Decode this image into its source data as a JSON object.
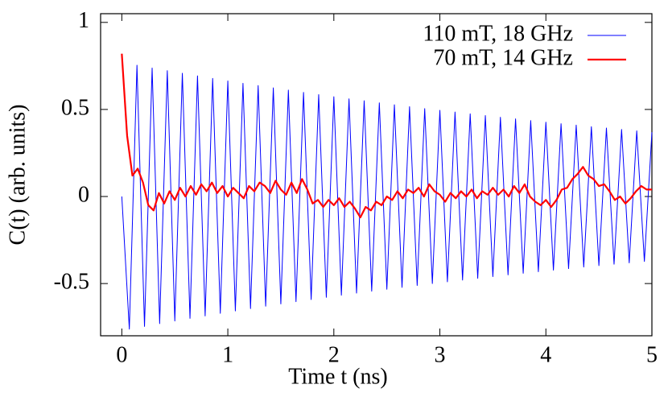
{
  "chart_data": {
    "type": "line",
    "xlabel": "Time t (ns)",
    "ylabel": "C(t) (arb. units)",
    "xlim": [
      -0.2,
      5
    ],
    "ylim": [
      -0.8,
      1.05
    ],
    "xticks": [
      0,
      1,
      2,
      3,
      4,
      5
    ],
    "yticks": [
      -0.5,
      0,
      0.5,
      1
    ],
    "grid": false,
    "legend": "upper right",
    "series": [
      {
        "name": "110 mT, 18 GHz",
        "color": "#0000ff",
        "width": 1,
        "x": [
          0,
          0.071,
          0.143,
          0.214,
          0.286,
          0.357,
          0.429,
          0.5,
          0.571,
          0.643,
          0.714,
          0.786,
          0.857,
          0.929,
          1.0,
          1.071,
          1.143,
          1.214,
          1.286,
          1.357,
          1.429,
          1.5,
          1.571,
          1.643,
          1.714,
          1.786,
          1.857,
          1.929,
          2.0,
          2.071,
          2.143,
          2.214,
          2.286,
          2.357,
          2.429,
          2.5,
          2.571,
          2.643,
          2.714,
          2.786,
          2.857,
          2.929,
          3.0,
          3.071,
          3.143,
          3.214,
          3.286,
          3.357,
          3.429,
          3.5,
          3.571,
          3.643,
          3.714,
          3.786,
          3.857,
          3.929,
          4.0,
          4.071,
          4.143,
          4.214,
          4.286,
          4.357,
          4.429,
          4.5,
          4.571,
          4.643,
          4.714,
          4.786,
          4.857,
          4.929,
          5.0
        ],
        "values": [
          0,
          -0.762,
          0.754,
          -0.746,
          0.738,
          -0.73,
          0.723,
          -0.715,
          0.708,
          -0.7,
          0.693,
          -0.686,
          0.678,
          -0.671,
          0.664,
          -0.657,
          0.65,
          -0.644,
          0.637,
          -0.63,
          0.624,
          -0.617,
          0.611,
          -0.604,
          0.598,
          -0.592,
          0.585,
          -0.579,
          0.573,
          -0.567,
          0.561,
          -0.555,
          0.55,
          -0.544,
          0.538,
          -0.533,
          0.527,
          -0.522,
          0.516,
          -0.511,
          0.505,
          -0.5,
          0.495,
          -0.49,
          0.485,
          -0.48,
          0.475,
          -0.47,
          0.465,
          -0.46,
          0.455,
          -0.45,
          0.446,
          -0.441,
          0.436,
          -0.432,
          0.427,
          -0.423,
          0.418,
          -0.414,
          0.41,
          -0.405,
          0.401,
          -0.397,
          0.393,
          -0.389,
          0.385,
          -0.381,
          0.377,
          -0.373,
          0.369
        ]
      },
      {
        "name": "70 mT, 14 GHz",
        "color": "#ff0000",
        "width": 2.2,
        "x": [
          0,
          0.05,
          0.1,
          0.15,
          0.2,
          0.25,
          0.3,
          0.35,
          0.4,
          0.45,
          0.5,
          0.55,
          0.6,
          0.65,
          0.7,
          0.75,
          0.8,
          0.85,
          0.9,
          0.95,
          1.0,
          1.05,
          1.1,
          1.15,
          1.2,
          1.25,
          1.3,
          1.35,
          1.4,
          1.45,
          1.5,
          1.55,
          1.6,
          1.65,
          1.7,
          1.75,
          1.8,
          1.85,
          1.9,
          1.95,
          2.0,
          2.05,
          2.1,
          2.15,
          2.2,
          2.25,
          2.3,
          2.35,
          2.4,
          2.45,
          2.5,
          2.55,
          2.6,
          2.65,
          2.7,
          2.75,
          2.8,
          2.85,
          2.9,
          2.95,
          3.0,
          3.05,
          3.1,
          3.15,
          3.2,
          3.25,
          3.3,
          3.35,
          3.4,
          3.45,
          3.5,
          3.55,
          3.6,
          3.65,
          3.7,
          3.75,
          3.8,
          3.85,
          3.9,
          3.95,
          4.0,
          4.05,
          4.1,
          4.15,
          4.2,
          4.25,
          4.3,
          4.35,
          4.4,
          4.45,
          4.5,
          4.55,
          4.6,
          4.65,
          4.7,
          4.75,
          4.8,
          4.85,
          4.9,
          4.95,
          5.0
        ],
        "values": [
          0.82,
          0.35,
          0.12,
          0.16,
          0.08,
          -0.05,
          -0.08,
          0.02,
          -0.04,
          0.03,
          -0.02,
          0.05,
          0.0,
          0.06,
          0.01,
          0.07,
          0.03,
          0.08,
          0.02,
          0.06,
          0.0,
          0.05,
          0.02,
          -0.01,
          0.06,
          0.03,
          0.08,
          0.06,
          0.02,
          0.09,
          0.04,
          0.01,
          0.08,
          0.02,
          0.1,
          0.04,
          -0.04,
          -0.02,
          -0.06,
          -0.02,
          -0.05,
          -0.01,
          -0.06,
          -0.03,
          -0.07,
          -0.12,
          -0.06,
          -0.08,
          -0.03,
          -0.05,
          0.0,
          -0.02,
          0.03,
          -0.01,
          0.04,
          0.02,
          0.05,
          0.0,
          0.07,
          0.03,
          0.01,
          -0.03,
          0.02,
          -0.01,
          0.03,
          0.0,
          0.04,
          -0.01,
          0.03,
          0.01,
          0.05,
          0.01,
          0.04,
          0.0,
          0.06,
          0.02,
          0.07,
          0.0,
          -0.03,
          -0.05,
          -0.02,
          -0.06,
          -0.02,
          0.04,
          0.05,
          0.1,
          0.13,
          0.17,
          0.12,
          0.1,
          0.06,
          0.07,
          0.03,
          -0.02,
          0.0,
          -0.04,
          -0.01,
          0.03,
          0.06,
          0.04,
          0.04
        ]
      }
    ]
  }
}
